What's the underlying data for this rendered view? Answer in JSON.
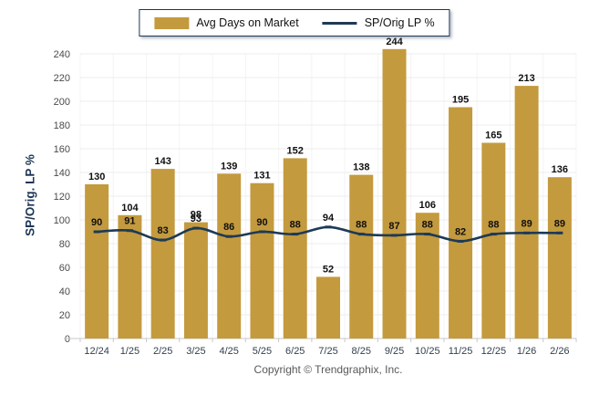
{
  "chart_data": {
    "type": "bar",
    "title": "",
    "categories": [
      "12/24",
      "1/25",
      "2/25",
      "3/25",
      "4/25",
      "5/25",
      "6/25",
      "7/25",
      "8/25",
      "9/25",
      "10/25",
      "11/25",
      "12/25",
      "1/26",
      "2/26"
    ],
    "series": [
      {
        "name": "Avg Days on Market",
        "type": "bar",
        "color": "#C49A3E",
        "values": [
          130,
          104,
          143,
          98,
          139,
          131,
          152,
          52,
          138,
          244,
          106,
          195,
          165,
          213,
          136
        ]
      },
      {
        "name": "SP/Orig LP %",
        "type": "line",
        "color": "#1D3A56",
        "values": [
          90,
          91,
          83,
          93,
          86,
          90,
          88,
          94,
          88,
          87,
          88,
          82,
          88,
          89,
          89
        ]
      }
    ],
    "xlabel": "",
    "ylabel": "SP/Orig. LP %",
    "ylim": [
      0,
      240
    ],
    "yticks": [
      0,
      20,
      40,
      60,
      80,
      100,
      120,
      140,
      160,
      180,
      200,
      220,
      240
    ],
    "grid": true,
    "legend_position": "top-center",
    "value_labels": true
  },
  "footer": {
    "copyright": "Copyright © Trendgraphix, Inc."
  },
  "colors": {
    "bar": "#C49A3E",
    "line": "#1D3A56",
    "grid": "#EDEDED",
    "grid_vertical": "#F4F4F4",
    "axis": "#C8C8C8",
    "axis_title": "#1F3757",
    "legend_border": "#1F3757"
  }
}
